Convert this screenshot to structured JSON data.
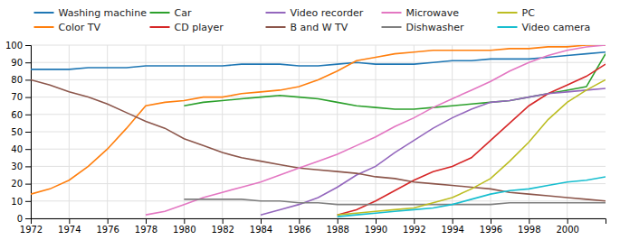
{
  "chart_data": {
    "type": "line",
    "x": [
      1972,
      1973,
      1974,
      1975,
      1976,
      1977,
      1978,
      1979,
      1980,
      1981,
      1982,
      1983,
      1984,
      1985,
      1986,
      1987,
      1988,
      1989,
      1990,
      1991,
      1992,
      1993,
      1994,
      1995,
      1996,
      1997,
      1998,
      1999,
      2000,
      2001,
      2002
    ],
    "series": [
      {
        "name": "Washing machine",
        "values": [
          86,
          86,
          86,
          87,
          87,
          87,
          88,
          88,
          88,
          88,
          88,
          89,
          89,
          89,
          88,
          88,
          89,
          90,
          89,
          89,
          89,
          90,
          91,
          91,
          92,
          92,
          92,
          93,
          94,
          95,
          96
        ]
      },
      {
        "name": "Color TV",
        "values": [
          14,
          17,
          22,
          30,
          40,
          52,
          65,
          67,
          68,
          70,
          70,
          72,
          73,
          74,
          76,
          80,
          85,
          91,
          93,
          95,
          96,
          97,
          97,
          97,
          97,
          98,
          98,
          99,
          99,
          100,
          100
        ]
      },
      {
        "name": "Car",
        "values": [
          null,
          null,
          null,
          null,
          null,
          null,
          null,
          null,
          65,
          67,
          68,
          69,
          70,
          71,
          70,
          69,
          67,
          65,
          64,
          63,
          63,
          64,
          65,
          66,
          67,
          68,
          70,
          72,
          74,
          76,
          95
        ]
      },
      {
        "name": "CD player",
        "values": [
          null,
          null,
          null,
          null,
          null,
          null,
          null,
          null,
          null,
          null,
          null,
          null,
          null,
          null,
          null,
          null,
          2,
          5,
          10,
          16,
          22,
          27,
          30,
          35,
          45,
          55,
          65,
          72,
          77,
          82,
          89
        ]
      },
      {
        "name": "Video recorder",
        "values": [
          null,
          null,
          null,
          null,
          null,
          null,
          null,
          null,
          null,
          null,
          null,
          null,
          2,
          5,
          8,
          12,
          18,
          25,
          30,
          38,
          45,
          52,
          58,
          63,
          67,
          68,
          70,
          72,
          73,
          74,
          75
        ]
      },
      {
        "name": "B and W TV",
        "values": [
          80,
          77,
          73,
          70,
          66,
          61,
          56,
          52,
          46,
          42,
          38,
          35,
          33,
          31,
          29,
          28,
          27,
          26,
          24,
          23,
          21,
          20,
          19,
          18,
          17,
          15,
          14,
          13,
          12,
          11,
          10
        ]
      },
      {
        "name": "Microwave",
        "values": [
          null,
          null,
          null,
          null,
          null,
          null,
          2,
          4,
          8,
          12,
          15,
          18,
          21,
          25,
          29,
          33,
          37,
          42,
          47,
          53,
          58,
          64,
          69,
          74,
          79,
          85,
          90,
          94,
          97,
          99,
          100
        ]
      },
      {
        "name": "Dishwasher",
        "values": [
          null,
          null,
          null,
          null,
          null,
          null,
          null,
          null,
          11,
          11,
          11,
          11,
          10,
          10,
          9,
          9,
          8,
          8,
          8,
          8,
          8,
          8,
          8,
          8,
          8,
          9,
          9,
          9,
          9,
          9,
          9
        ]
      },
      {
        "name": "PC",
        "values": [
          null,
          null,
          null,
          null,
          null,
          null,
          null,
          null,
          null,
          null,
          null,
          null,
          null,
          null,
          null,
          null,
          2,
          3,
          4,
          5,
          6,
          9,
          12,
          17,
          23,
          33,
          44,
          57,
          67,
          74,
          80
        ]
      },
      {
        "name": "Video camera",
        "values": [
          null,
          null,
          null,
          null,
          null,
          null,
          null,
          null,
          null,
          null,
          null,
          null,
          null,
          null,
          null,
          null,
          1,
          2,
          3,
          4,
          5,
          6,
          8,
          11,
          14,
          16,
          17,
          19,
          21,
          22,
          24
        ]
      }
    ],
    "xlim": [
      1972,
      2002
    ],
    "ylim": [
      0,
      100
    ],
    "xticks": [
      1972,
      1974,
      1976,
      1978,
      1980,
      1982,
      1984,
      1986,
      1988,
      1990,
      1992,
      1994,
      1996,
      1998,
      2000
    ],
    "yticks": [
      0,
      10,
      20,
      30,
      40,
      50,
      60,
      70,
      80,
      90,
      100
    ],
    "grid": true,
    "legend": "top"
  }
}
